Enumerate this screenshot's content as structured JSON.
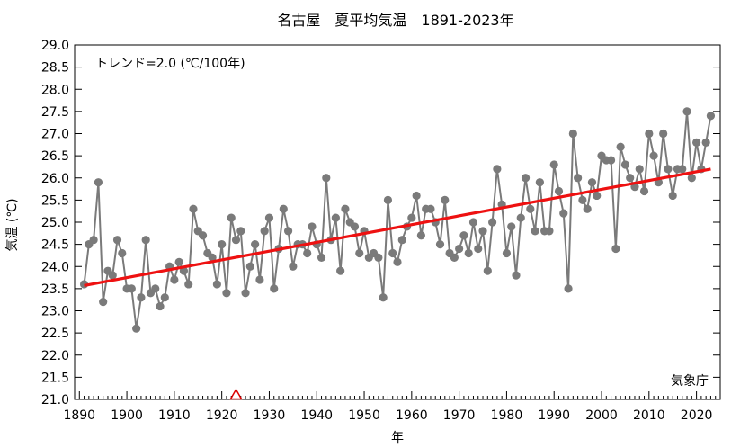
{
  "chart_data": {
    "type": "line",
    "title": "名古屋　夏平均気温　1891-2023年",
    "xlabel": "年",
    "ylabel": "気温 (℃)",
    "trend_label": "トレンド=2.0 (℃/100年)",
    "source_label": "気象庁",
    "xlim": [
      1889,
      2025
    ],
    "ylim": [
      21.0,
      29.0
    ],
    "x_ticks": [
      1890,
      1900,
      1910,
      1920,
      1930,
      1940,
      1950,
      1960,
      1970,
      1980,
      1990,
      2000,
      2010,
      2020
    ],
    "y_ticks": [
      "21.0",
      "21.5",
      "22.0",
      "22.5",
      "23.0",
      "23.5",
      "24.0",
      "24.5",
      "25.0",
      "25.5",
      "26.0",
      "26.5",
      "27.0",
      "27.5",
      "28.0",
      "28.5",
      "29.0"
    ],
    "grid": false,
    "start_year": 1891,
    "values": [
      23.6,
      24.5,
      24.6,
      25.9,
      23.2,
      23.9,
      23.8,
      24.6,
      24.3,
      23.5,
      23.5,
      22.6,
      23.3,
      24.6,
      23.4,
      23.5,
      23.1,
      23.3,
      24.0,
      23.7,
      24.1,
      23.9,
      23.6,
      25.3,
      24.8,
      24.7,
      24.3,
      24.2,
      23.6,
      24.5,
      23.4,
      25.1,
      24.6,
      24.8,
      23.4,
      24.0,
      24.5,
      23.7,
      24.8,
      25.1,
      23.5,
      24.4,
      25.3,
      24.8,
      24.0,
      24.5,
      24.5,
      24.3,
      24.9,
      24.5,
      24.2,
      26.0,
      24.6,
      25.1,
      23.9,
      25.3,
      25.0,
      24.9,
      24.3,
      24.8,
      24.2,
      24.3,
      24.2,
      23.3,
      25.5,
      24.3,
      24.1,
      24.6,
      24.9,
      25.1,
      25.6,
      24.7,
      25.3,
      25.3,
      25.0,
      24.5,
      25.5,
      24.3,
      24.2,
      24.4,
      24.7,
      24.3,
      25.0,
      24.4,
      24.8,
      23.9,
      25.0,
      26.2,
      25.4,
      24.3,
      24.9,
      23.8,
      25.1,
      26.0,
      25.3,
      24.8,
      25.9,
      24.8,
      24.8,
      26.3,
      25.7,
      25.2,
      23.5,
      27.0,
      26.0,
      25.5,
      25.3,
      25.9,
      25.6,
      26.5,
      26.4,
      26.4,
      24.4,
      26.7,
      26.3,
      26.0,
      25.8,
      26.2,
      25.7,
      27.0,
      26.5,
      25.9,
      27.0,
      26.2,
      25.6,
      26.2,
      26.2,
      27.5,
      26.0,
      26.8,
      26.2,
      26.8,
      27.4
    ],
    "trend": {
      "x": [
        1891,
        2023
      ],
      "y": [
        23.57,
        26.2
      ]
    },
    "marker_year": 1923,
    "colors": {
      "series": "#7a7a7a",
      "trend": "#ee1111",
      "marker": "#dd0000",
      "frame": "#000000"
    }
  }
}
